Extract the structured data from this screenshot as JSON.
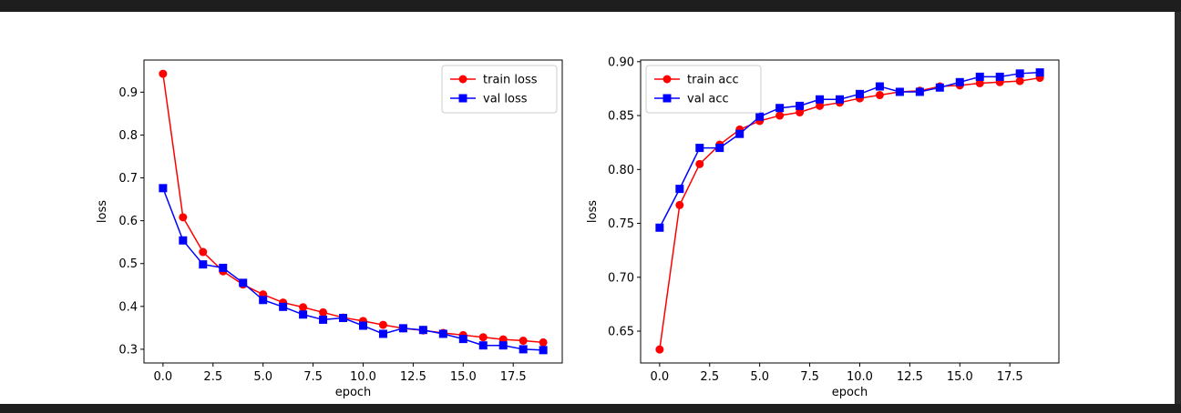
{
  "chart_data": [
    {
      "type": "line",
      "xlabel": "epoch",
      "ylabel": "loss",
      "xlim": [
        -0.95,
        19.95
      ],
      "ylim": [
        0.268,
        0.975
      ],
      "x_ticks": [
        0.0,
        2.5,
        5.0,
        7.5,
        10.0,
        12.5,
        15.0,
        17.5
      ],
      "x_tick_labels": [
        "0.0",
        "2.5",
        "5.0",
        "7.5",
        "10.0",
        "12.5",
        "15.0",
        "17.5"
      ],
      "y_ticks": [
        0.3,
        0.4,
        0.5,
        0.6,
        0.7,
        0.8,
        0.9
      ],
      "y_tick_labels": [
        "0.3",
        "0.4",
        "0.5",
        "0.6",
        "0.7",
        "0.8",
        "0.9"
      ],
      "legend_position": "top-right",
      "x": [
        0,
        1,
        2,
        3,
        4,
        5,
        6,
        7,
        8,
        9,
        10,
        11,
        12,
        13,
        14,
        15,
        16,
        17,
        18,
        19
      ],
      "series": [
        {
          "name": "train loss",
          "color": "#ff0000",
          "marker": "circle",
          "values": [
            0.943,
            0.608,
            0.527,
            0.482,
            0.451,
            0.428,
            0.409,
            0.398,
            0.386,
            0.374,
            0.366,
            0.357,
            0.349,
            0.344,
            0.338,
            0.333,
            0.328,
            0.323,
            0.32,
            0.316
          ]
        },
        {
          "name": "val loss",
          "color": "#0000ff",
          "marker": "square",
          "values": [
            0.676,
            0.554,
            0.498,
            0.49,
            0.455,
            0.415,
            0.399,
            0.381,
            0.369,
            0.373,
            0.355,
            0.336,
            0.349,
            0.345,
            0.336,
            0.324,
            0.309,
            0.309,
            0.3,
            0.298
          ]
        }
      ]
    },
    {
      "type": "line",
      "xlabel": "epoch",
      "ylabel": "loss",
      "xlim": [
        -0.95,
        19.95
      ],
      "ylim": [
        0.6205,
        0.9015
      ],
      "x_ticks": [
        0.0,
        2.5,
        5.0,
        7.5,
        10.0,
        12.5,
        15.0,
        17.5
      ],
      "x_tick_labels": [
        "0.0",
        "2.5",
        "5.0",
        "7.5",
        "10.0",
        "12.5",
        "15.0",
        "17.5"
      ],
      "y_ticks": [
        0.65,
        0.7,
        0.75,
        0.8,
        0.85,
        0.9
      ],
      "y_tick_labels": [
        "0.65",
        "0.70",
        "0.75",
        "0.80",
        "0.85",
        "0.90"
      ],
      "legend_position": "top-left",
      "x": [
        0,
        1,
        2,
        3,
        4,
        5,
        6,
        7,
        8,
        9,
        10,
        11,
        12,
        13,
        14,
        15,
        16,
        17,
        18,
        19
      ],
      "series": [
        {
          "name": "train acc",
          "color": "#ff0000",
          "marker": "circle",
          "values": [
            0.633,
            0.767,
            0.805,
            0.823,
            0.837,
            0.845,
            0.85,
            0.853,
            0.859,
            0.862,
            0.866,
            0.869,
            0.872,
            0.873,
            0.877,
            0.878,
            0.88,
            0.881,
            0.882,
            0.885
          ]
        },
        {
          "name": "val acc",
          "color": "#0000ff",
          "marker": "square",
          "values": [
            0.746,
            0.782,
            0.82,
            0.82,
            0.833,
            0.849,
            0.857,
            0.859,
            0.865,
            0.865,
            0.87,
            0.877,
            0.872,
            0.872,
            0.876,
            0.881,
            0.886,
            0.886,
            0.889,
            0.89
          ]
        }
      ]
    }
  ]
}
